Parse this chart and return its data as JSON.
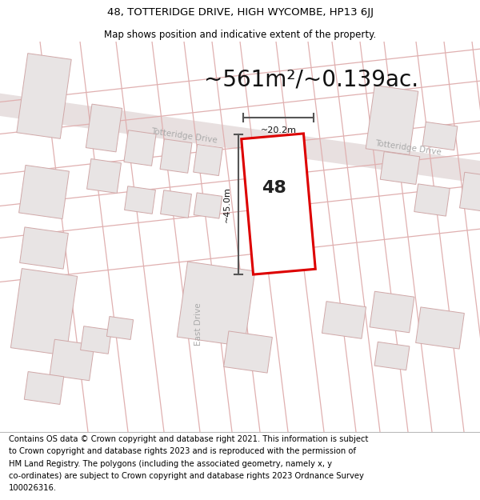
{
  "title_line1": "48, TOTTERIDGE DRIVE, HIGH WYCOMBE, HP13 6JJ",
  "title_line2": "Map shows position and indicative extent of the property.",
  "area_text": "~561m²/~0.139ac.",
  "label_height": "~45.0m",
  "label_width": "~20.2m",
  "property_number": "48",
  "road_name1": "Totteridge Drive",
  "road_name2": "Totteridge Drive",
  "road_name3": "East Drive",
  "footer_lines": [
    "Contains OS data © Crown copyright and database right 2021. This information is subject",
    "to Crown copyright and database rights 2023 and is reproduced with the permission of",
    "HM Land Registry. The polygons (including the associated geometry, namely x, y",
    "co-ordinates) are subject to Crown copyright and database rights 2023 Ordnance Survey",
    "100026316."
  ],
  "bg_color": "#ffffff",
  "map_bg": "#ffffff",
  "road_fill_color": "#e8e0e0",
  "building_fill": "#e8e4e4",
  "building_edge": "#d0a8a8",
  "plot_outline_color": "#dd0000",
  "plot_fill": "#ffffff",
  "dim_line_color": "#555555",
  "road_line_color": "#e0b0b0",
  "title_fontsize": 9.5,
  "subtitle_fontsize": 8.5,
  "area_fontsize": 20,
  "label_fontsize": 8,
  "number_fontsize": 16,
  "footer_fontsize": 7.2,
  "road_label_color": "#aaaaaa",
  "road_label_size": 7.5
}
